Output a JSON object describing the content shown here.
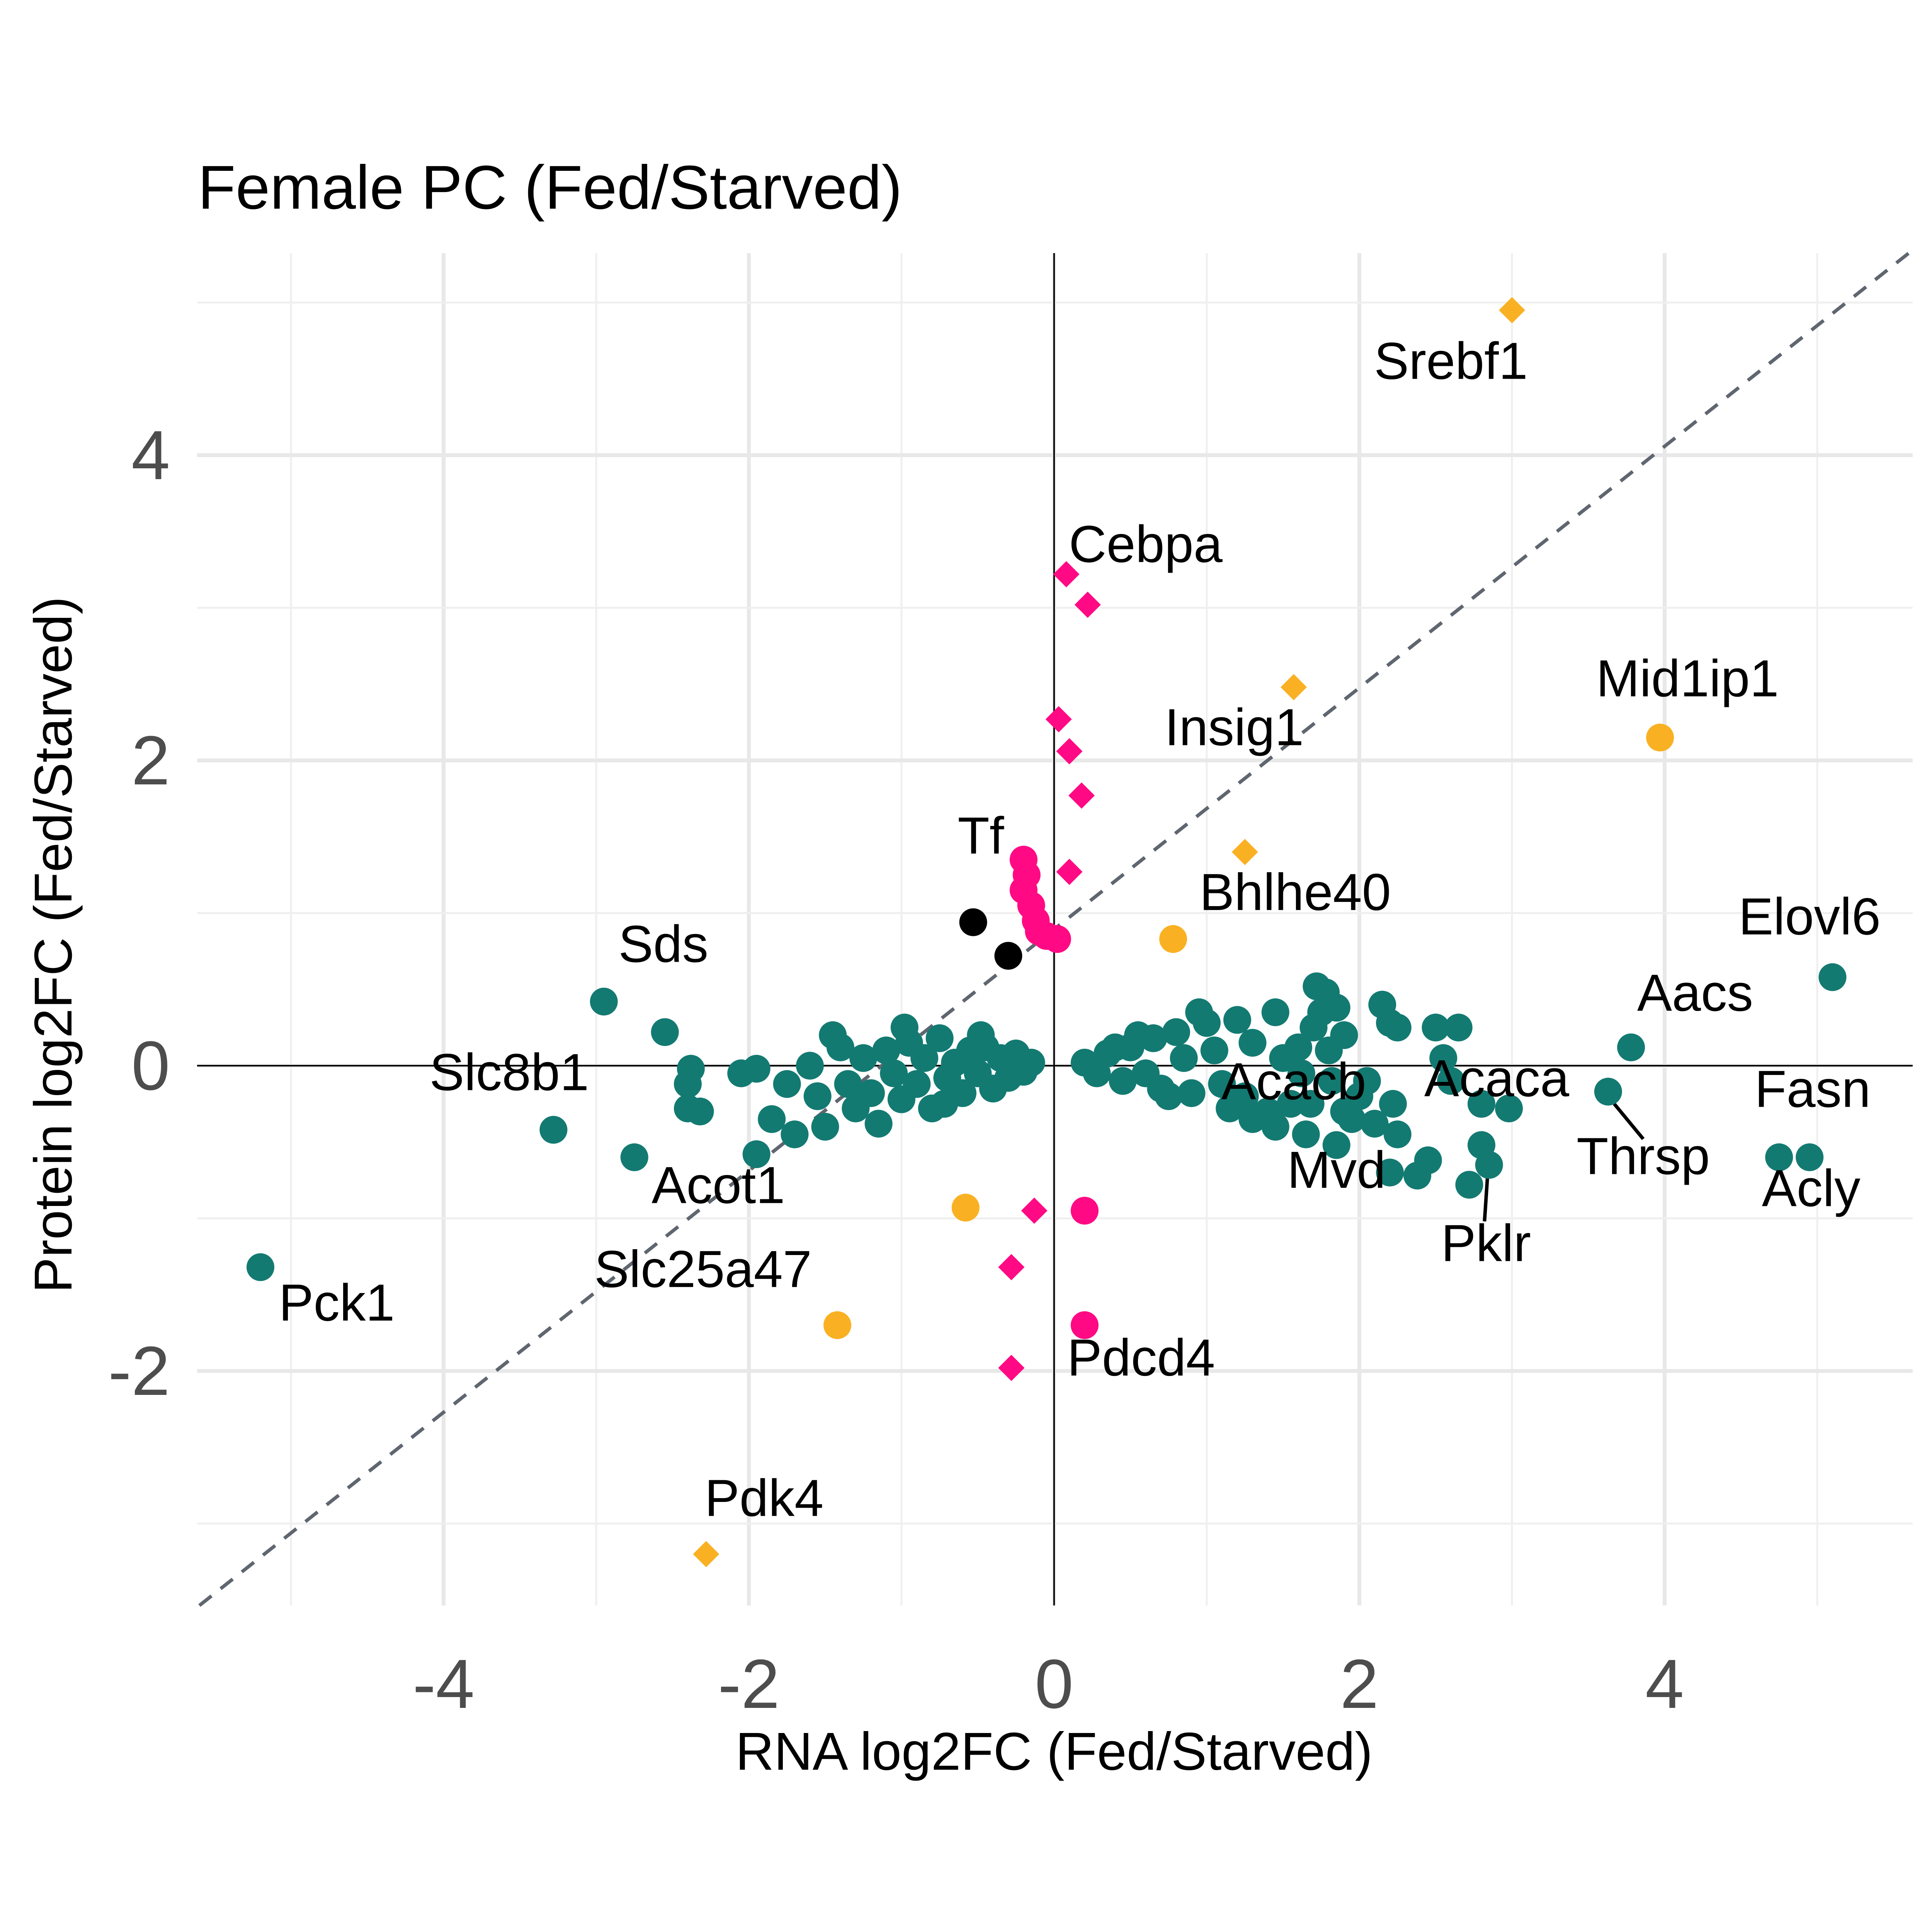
{
  "chart_data": {
    "type": "scatter",
    "title": "Female PC (Fed/Starved)",
    "xlabel": "RNA log2FC (Fed/Starved)",
    "ylabel": "Protein log2FC (Fed/Starved)",
    "xlim": [
      -5.6,
      5.6
    ],
    "ylim": [
      -3.5,
      5.4
    ],
    "x_ticks": [
      -4,
      -2,
      0,
      2,
      4
    ],
    "y_ticks": [
      -2,
      0,
      2,
      4
    ],
    "x_tick_labels": [
      "-4",
      "-2",
      "0",
      "2",
      "4"
    ],
    "y_tick_labels": [
      "-2",
      "0",
      "2",
      "4"
    ],
    "grid": true,
    "zero_lines": true,
    "reference_line": {
      "slope": 1,
      "intercept": 0,
      "style": "dashed"
    },
    "colors": {
      "teal": "#137a72",
      "magenta": "#ff0a84",
      "orange": "#f9b123",
      "black": "#000000",
      "grid": "#e8e8e8",
      "reference": "#5f6670"
    },
    "series": [
      {
        "color": "teal",
        "shape": "circle",
        "points": [
          {
            "x": 4.95,
            "y": -0.6,
            "label": "Acly"
          },
          {
            "x": 4.75,
            "y": -0.6,
            "label": "Fasn"
          },
          {
            "x": 5.1,
            "y": 0.58,
            "label": "Elovl6"
          },
          {
            "x": 3.78,
            "y": 0.12,
            "label": "Aacs"
          },
          {
            "x": 3.63,
            "y": -0.17,
            "label": "Thrsp"
          },
          {
            "x": 2.98,
            "y": -0.28,
            "label": "Acaca"
          },
          {
            "x": 2.85,
            "y": -0.65,
            "label": "Pklr"
          },
          {
            "x": 1.85,
            "y": -0.52,
            "label": "Mvd"
          },
          {
            "x": 1.9,
            "y": -0.3,
            "label": "Acacb"
          },
          {
            "x": -2.95,
            "y": 0.42,
            "label": "Sds"
          },
          {
            "x": -3.28,
            "y": -0.42,
            "label": "Slc8b1"
          },
          {
            "x": -2.75,
            "y": -0.6,
            "label": "Acot1"
          },
          {
            "x": -5.2,
            "y": -1.32,
            "label": "Pck1"
          },
          {
            "x": -2.55,
            "y": 0.22
          },
          {
            "x": -2.38,
            "y": -0.02
          },
          {
            "x": -2.4,
            "y": -0.12
          },
          {
            "x": -2.4,
            "y": -0.28
          },
          {
            "x": -2.32,
            "y": -0.3
          },
          {
            "x": -2.05,
            "y": -0.05
          },
          {
            "x": -1.95,
            "y": -0.02
          },
          {
            "x": -1.95,
            "y": -0.58
          },
          {
            "x": -1.85,
            "y": -0.35
          },
          {
            "x": -1.75,
            "y": -0.12
          },
          {
            "x": -1.7,
            "y": -0.45
          },
          {
            "x": -1.55,
            "y": -0.2
          },
          {
            "x": -1.5,
            "y": -0.4
          },
          {
            "x": -1.45,
            "y": 0.2
          },
          {
            "x": -1.4,
            "y": 0.12
          },
          {
            "x": -1.3,
            "y": -0.28
          },
          {
            "x": -1.25,
            "y": 0.05
          },
          {
            "x": -1.2,
            "y": -0.18
          },
          {
            "x": -1.15,
            "y": -0.38
          },
          {
            "x": -1.1,
            "y": 0.1
          },
          {
            "x": -1.05,
            "y": -0.05
          },
          {
            "x": -1.0,
            "y": -0.22
          },
          {
            "x": -0.95,
            "y": 0.15
          },
          {
            "x": -0.9,
            "y": -0.12
          },
          {
            "x": -0.85,
            "y": 0.05
          },
          {
            "x": -0.8,
            "y": -0.28
          },
          {
            "x": -0.75,
            "y": 0.18
          },
          {
            "x": -0.7,
            "y": -0.08
          },
          {
            "x": -0.65,
            "y": 0.02
          },
          {
            "x": -0.6,
            "y": -0.18
          },
          {
            "x": -0.55,
            "y": 0.1
          },
          {
            "x": -0.5,
            "y": -0.05
          },
          {
            "x": -0.45,
            "y": 0.12
          },
          {
            "x": -0.4,
            "y": -0.15
          },
          {
            "x": -0.35,
            "y": 0.05
          },
          {
            "x": -0.3,
            "y": -0.08
          },
          {
            "x": -0.25,
            "y": 0.08
          },
          {
            "x": -0.2,
            "y": -0.04
          },
          {
            "x": -0.15,
            "y": 0.02
          },
          {
            "x": -1.6,
            "y": 0.0
          },
          {
            "x": -1.35,
            "y": -0.12
          },
          {
            "x": -0.98,
            "y": 0.25
          },
          {
            "x": -0.72,
            "y": -0.25
          },
          {
            "x": -0.48,
            "y": 0.2
          },
          {
            "x": 0.2,
            "y": 0.02
          },
          {
            "x": 0.28,
            "y": -0.05
          },
          {
            "x": 0.35,
            "y": 0.08
          },
          {
            "x": 0.45,
            "y": -0.1
          },
          {
            "x": 0.5,
            "y": 0.12
          },
          {
            "x": 0.6,
            "y": -0.05
          },
          {
            "x": 0.65,
            "y": 0.18
          },
          {
            "x": 0.7,
            "y": -0.15
          },
          {
            "x": 0.8,
            "y": 0.22
          },
          {
            "x": 0.85,
            "y": 0.05
          },
          {
            "x": 0.9,
            "y": -0.18
          },
          {
            "x": 1.0,
            "y": 0.28
          },
          {
            "x": 1.05,
            "y": 0.1
          },
          {
            "x": 1.1,
            "y": -0.12
          },
          {
            "x": 1.2,
            "y": 0.3
          },
          {
            "x": 1.25,
            "y": -0.2
          },
          {
            "x": 1.3,
            "y": 0.15
          },
          {
            "x": 1.4,
            "y": -0.3
          },
          {
            "x": 1.45,
            "y": 0.35
          },
          {
            "x": 1.5,
            "y": 0.05
          },
          {
            "x": 1.55,
            "y": -0.25
          },
          {
            "x": 1.45,
            "y": -0.4
          },
          {
            "x": 1.3,
            "y": -0.35
          },
          {
            "x": 1.6,
            "y": 0.12
          },
          {
            "x": 1.62,
            "y": -0.05
          },
          {
            "x": 1.65,
            "y": -0.45
          },
          {
            "x": 1.7,
            "y": 0.25
          },
          {
            "x": 1.72,
            "y": 0.52
          },
          {
            "x": 1.78,
            "y": 0.48
          },
          {
            "x": 1.75,
            "y": 0.35
          },
          {
            "x": 1.8,
            "y": 0.1
          },
          {
            "x": 1.82,
            "y": -0.1
          },
          {
            "x": 1.68,
            "y": -0.25
          },
          {
            "x": 1.85,
            "y": 0.38
          },
          {
            "x": 2.05,
            "y": -0.1
          },
          {
            "x": 2.1,
            "y": -0.38
          },
          {
            "x": 2.15,
            "y": 0.4
          },
          {
            "x": 2.2,
            "y": 0.28
          },
          {
            "x": 2.22,
            "y": -0.25
          },
          {
            "x": 2.25,
            "y": -0.45
          },
          {
            "x": 2.2,
            "y": -0.7
          },
          {
            "x": 2.25,
            "y": 0.25
          },
          {
            "x": 2.38,
            "y": -0.72
          },
          {
            "x": 2.45,
            "y": -0.62
          },
          {
            "x": 2.5,
            "y": 0.25
          },
          {
            "x": 2.55,
            "y": 0.05
          },
          {
            "x": 2.6,
            "y": -0.1
          },
          {
            "x": 2.65,
            "y": 0.25
          },
          {
            "x": 2.72,
            "y": -0.78
          },
          {
            "x": 2.8,
            "y": -0.25
          },
          {
            "x": 2.8,
            "y": -0.52
          },
          {
            "x": 0.95,
            "y": 0.35
          },
          {
            "x": 0.55,
            "y": 0.2
          },
          {
            "x": 1.15,
            "y": -0.28
          },
          {
            "x": 0.75,
            "y": -0.2
          },
          {
            "x": 0.4,
            "y": 0.12
          },
          {
            "x": 1.9,
            "y": 0.2
          },
          {
            "x": 2.0,
            "y": -0.2
          },
          {
            "x": 1.95,
            "y": -0.35
          }
        ]
      },
      {
        "color": "magenta",
        "shape": "diamond",
        "points": [
          {
            "x": 0.08,
            "y": 3.22,
            "label": "Cebpa"
          },
          {
            "x": 0.22,
            "y": 3.02
          },
          {
            "x": 0.03,
            "y": 2.27
          },
          {
            "x": 0.1,
            "y": 2.06
          },
          {
            "x": 0.18,
            "y": 1.77
          },
          {
            "x": 0.1,
            "y": 1.27
          },
          {
            "x": -0.13,
            "y": -0.95
          },
          {
            "x": -0.28,
            "y": -1.32
          },
          {
            "x": -0.28,
            "y": -1.98,
            "label": "Pdcd4"
          }
        ]
      },
      {
        "color": "magenta",
        "shape": "circle",
        "points": [
          {
            "x": -0.2,
            "y": 1.35
          },
          {
            "x": -0.18,
            "y": 1.25
          },
          {
            "x": -0.2,
            "y": 1.15
          },
          {
            "x": -0.15,
            "y": 1.05
          },
          {
            "x": -0.12,
            "y": 0.95
          },
          {
            "x": -0.1,
            "y": 0.88
          },
          {
            "x": -0.05,
            "y": 0.85
          },
          {
            "x": 0.02,
            "y": 0.83
          },
          {
            "x": 0.2,
            "y": -0.95
          },
          {
            "x": 0.2,
            "y": -1.7
          }
        ]
      },
      {
        "color": "orange",
        "shape": "diamond",
        "points": [
          {
            "x": 3.0,
            "y": 4.95,
            "label": "Srebf1"
          },
          {
            "x": 1.57,
            "y": 2.48,
            "label": "Insig1"
          },
          {
            "x": 1.25,
            "y": 1.4
          },
          {
            "x": -2.28,
            "y": -3.2,
            "label": "Pdk4"
          }
        ]
      },
      {
        "color": "orange",
        "shape": "circle",
        "points": [
          {
            "x": 3.97,
            "y": 2.15,
            "label": "Mid1ip1"
          },
          {
            "x": 0.78,
            "y": 0.83,
            "label": "Bhlhe40"
          },
          {
            "x": -0.58,
            "y": -0.93
          },
          {
            "x": -1.42,
            "y": -1.7,
            "label": "Slc25a47"
          }
        ]
      },
      {
        "color": "black",
        "shape": "circle",
        "points": [
          {
            "x": -0.53,
            "y": 0.94,
            "label": "Tf"
          },
          {
            "x": -0.3,
            "y": 0.72
          }
        ]
      }
    ],
    "annotations": [
      {
        "text": "Srebf1",
        "x": 2.6,
        "y": 4.5
      },
      {
        "text": "Cebpa",
        "x": 0.6,
        "y": 3.3
      },
      {
        "text": "Mid1ip1",
        "x": 4.15,
        "y": 2.42
      },
      {
        "text": "Insig1",
        "x": 1.18,
        "y": 2.1
      },
      {
        "text": "Tf",
        "x": -0.48,
        "y": 1.39
      },
      {
        "text": "Bhlhe40",
        "x": 1.58,
        "y": 1.02
      },
      {
        "text": "Elovl6",
        "x": 4.95,
        "y": 0.86
      },
      {
        "text": "Sds",
        "x": -2.56,
        "y": 0.68
      },
      {
        "text": "Aacs",
        "x": 4.2,
        "y": 0.36
      },
      {
        "text": "Slc8b1",
        "x": -3.57,
        "y": -0.16
      },
      {
        "text": "Acacb",
        "x": 1.57,
        "y": -0.22
      },
      {
        "text": "Acaca",
        "x": 2.9,
        "y": -0.2
      },
      {
        "text": "Fasn",
        "x": 4.97,
        "y": -0.27
      },
      {
        "text": "Mvd",
        "x": 1.85,
        "y": -0.8
      },
      {
        "text": "Thrsp",
        "x": 3.86,
        "y": -0.71
      },
      {
        "text": "Acot1",
        "x": -2.2,
        "y": -0.9
      },
      {
        "text": "Acly",
        "x": 4.96,
        "y": -0.92
      },
      {
        "text": "Pklr",
        "x": 2.83,
        "y": -1.28
      },
      {
        "text": "Slc25a47",
        "x": -2.3,
        "y": -1.45
      },
      {
        "text": "Pck1",
        "x": -4.7,
        "y": -1.67
      },
      {
        "text": "Pdcd4",
        "x": 0.57,
        "y": -2.03
      },
      {
        "text": "Pdk4",
        "x": -1.9,
        "y": -2.95
      }
    ],
    "leader_lines": [
      {
        "from": [
          3.67,
          -0.25
        ],
        "to": [
          3.86,
          -0.48
        ]
      },
      {
        "from": [
          2.84,
          -0.72
        ],
        "to": [
          2.82,
          -1.02
        ]
      }
    ]
  }
}
